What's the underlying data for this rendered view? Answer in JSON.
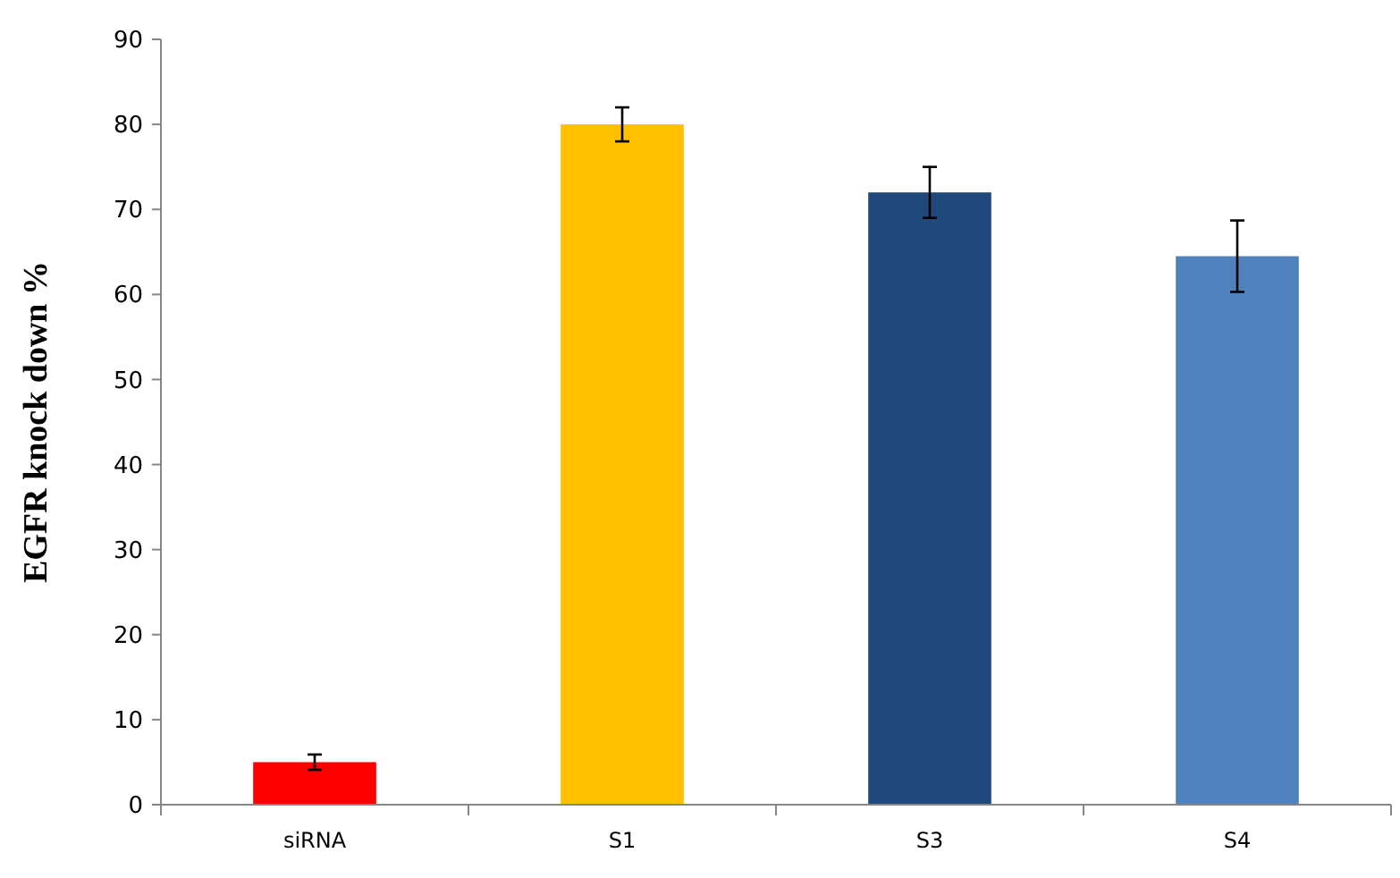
{
  "chart_data": {
    "type": "bar",
    "ylabel": "EGFR knock down %",
    "categories": [
      "siRNA",
      "S1",
      "S3",
      "S4"
    ],
    "values": [
      5,
      80,
      72,
      64.5
    ],
    "colors": [
      "#ff0000",
      "#ffc000",
      "#1f497d",
      "#4f81bd"
    ],
    "errors": [
      0.9,
      2,
      3,
      4.2
    ],
    "ylim": [
      0,
      90
    ],
    "yticks": [
      0,
      10,
      20,
      30,
      40,
      50,
      60,
      70,
      80,
      90
    ],
    "grid": false
  }
}
